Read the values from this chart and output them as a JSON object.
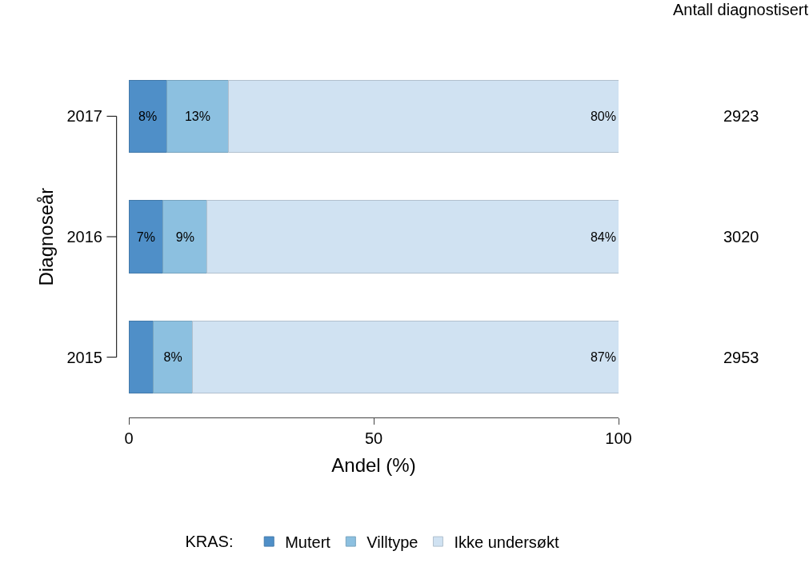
{
  "chart_data": {
    "type": "bar",
    "orientation": "horizontal",
    "stacked": true,
    "categories": [
      "2017",
      "2016",
      "2015"
    ],
    "series": [
      {
        "name": "Mutert",
        "color": "#4f8fc8",
        "values": [
          7.7,
          7,
          5
        ],
        "value_labels": [
          "8%",
          "7%",
          null
        ]
      },
      {
        "name": "Villtype",
        "color": "#8cc0e0",
        "values": [
          12.7,
          9,
          8
        ],
        "value_labels": [
          "13%",
          "9%",
          "8%"
        ]
      },
      {
        "name": "Ikke undersøkt",
        "color": "#d0e2f2",
        "values": [
          79.6,
          84,
          87
        ],
        "value_labels": [
          "80%",
          "84%",
          "87%"
        ]
      }
    ],
    "xlim": [
      0,
      100
    ],
    "xticks": [
      0,
      50,
      100
    ],
    "xlabel": "Andel (%)",
    "ylabel": "Diagnoseår",
    "legend": "bottom",
    "legend_title": "KRAS:",
    "grid": false,
    "annotations": [
      "Antall diagnostisert",
      "2923",
      "3020",
      "2953"
    ]
  }
}
